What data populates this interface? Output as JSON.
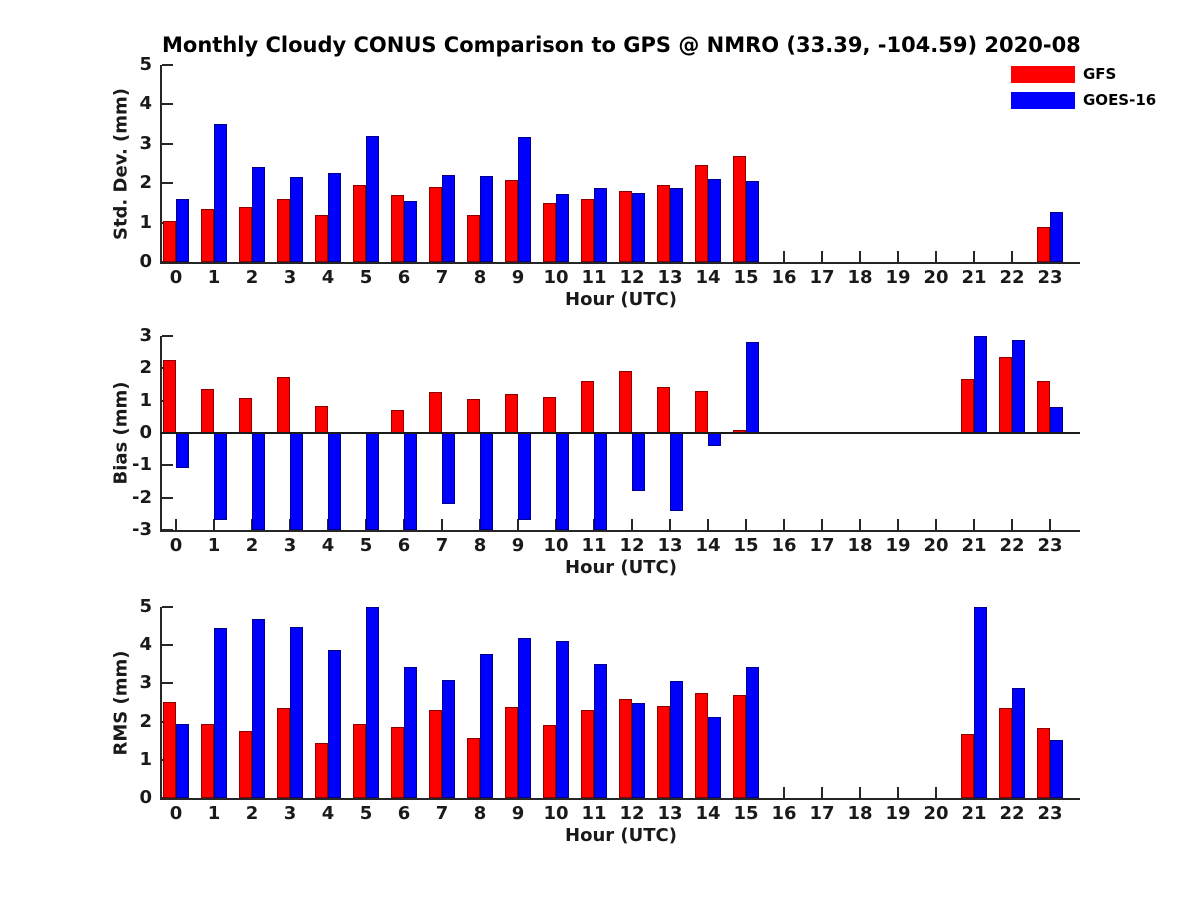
{
  "figure_title": "Monthly Cloudy CONUS Comparison to GPS @ NMRO (33.39, -104.59) 2020-08",
  "legend": {
    "items": [
      {
        "label": "GFS",
        "color": "#ff0000"
      },
      {
        "label": "GOES-16",
        "color": "#0000ff"
      }
    ]
  },
  "chart_data": [
    {
      "type": "bar",
      "title": "",
      "xlabel": "Hour (UTC)",
      "ylabel": "Std. Dev. (mm)",
      "ylim": [
        0,
        5
      ],
      "yticks": [
        0,
        1,
        2,
        3,
        4,
        5
      ],
      "grid": false,
      "legend_position": "top-right",
      "categories": [
        "0",
        "1",
        "2",
        "3",
        "4",
        "5",
        "6",
        "7",
        "8",
        "9",
        "10",
        "11",
        "12",
        "13",
        "14",
        "15",
        "16",
        "17",
        "18",
        "19",
        "20",
        "21",
        "22",
        "23"
      ],
      "series": [
        {
          "name": "GFS",
          "color": "#ff0000",
          "values": [
            1.05,
            1.35,
            1.4,
            1.6,
            1.2,
            1.95,
            1.7,
            1.9,
            1.2,
            2.08,
            1.5,
            1.6,
            1.8,
            1.95,
            2.45,
            2.7,
            null,
            null,
            null,
            null,
            null,
            null,
            null,
            0.88
          ]
        },
        {
          "name": "GOES-16",
          "color": "#0000ff",
          "values": [
            1.6,
            3.5,
            2.42,
            2.15,
            2.25,
            3.2,
            1.55,
            2.22,
            2.18,
            3.17,
            1.72,
            1.87,
            1.75,
            1.88,
            2.1,
            2.05,
            null,
            null,
            null,
            null,
            null,
            null,
            null,
            1.28
          ]
        }
      ]
    },
    {
      "type": "bar",
      "title": "",
      "xlabel": "Hour (UTC)",
      "ylabel": "Bias (mm)",
      "ylim": [
        -3,
        3
      ],
      "yticks": [
        -3,
        -2,
        -1,
        0,
        1,
        2,
        3
      ],
      "grid": false,
      "categories": [
        "0",
        "1",
        "2",
        "3",
        "4",
        "5",
        "6",
        "7",
        "8",
        "9",
        "10",
        "11",
        "12",
        "13",
        "14",
        "15",
        "16",
        "17",
        "18",
        "19",
        "20",
        "21",
        "22",
        "23"
      ],
      "series": [
        {
          "name": "GFS",
          "color": "#ff0000",
          "values": [
            2.27,
            1.37,
            1.08,
            1.72,
            0.85,
            null,
            0.72,
            1.27,
            1.05,
            1.2,
            1.12,
            1.62,
            1.92,
            1.43,
            1.31,
            0.1,
            null,
            null,
            null,
            null,
            null,
            1.68,
            2.35,
            1.62
          ]
        },
        {
          "name": "GOES-16",
          "color": "#0000ff",
          "values": [
            -1.08,
            -2.7,
            -3.0,
            -3.0,
            -3.0,
            -3.0,
            -3.0,
            -2.2,
            -3.0,
            -2.7,
            -3.0,
            -3.0,
            -1.8,
            -2.4,
            -0.4,
            2.8,
            null,
            null,
            null,
            null,
            null,
            3.0,
            2.87,
            0.8
          ]
        }
      ]
    },
    {
      "type": "bar",
      "title": "",
      "xlabel": "Hour (UTC)",
      "ylabel": "RMS (mm)",
      "ylim": [
        0,
        5
      ],
      "yticks": [
        0,
        1,
        2,
        3,
        4,
        5
      ],
      "grid": false,
      "categories": [
        "0",
        "1",
        "2",
        "3",
        "4",
        "5",
        "6",
        "7",
        "8",
        "9",
        "10",
        "11",
        "12",
        "13",
        "14",
        "15",
        "16",
        "17",
        "18",
        "19",
        "20",
        "21",
        "22",
        "23"
      ],
      "series": [
        {
          "name": "GFS",
          "color": "#ff0000",
          "values": [
            2.52,
            1.94,
            1.75,
            2.35,
            1.45,
            1.94,
            1.86,
            2.3,
            1.57,
            2.39,
            1.9,
            2.3,
            2.58,
            2.4,
            2.74,
            2.7,
            null,
            null,
            null,
            null,
            null,
            1.67,
            2.35,
            1.82
          ]
        },
        {
          "name": "GOES-16",
          "color": "#0000ff",
          "values": [
            1.94,
            4.45,
            4.68,
            4.48,
            3.88,
            5.0,
            3.44,
            3.08,
            3.77,
            4.18,
            4.12,
            3.5,
            2.48,
            3.06,
            2.13,
            3.44,
            null,
            null,
            null,
            null,
            null,
            5.0,
            2.87,
            1.51
          ]
        }
      ]
    }
  ]
}
